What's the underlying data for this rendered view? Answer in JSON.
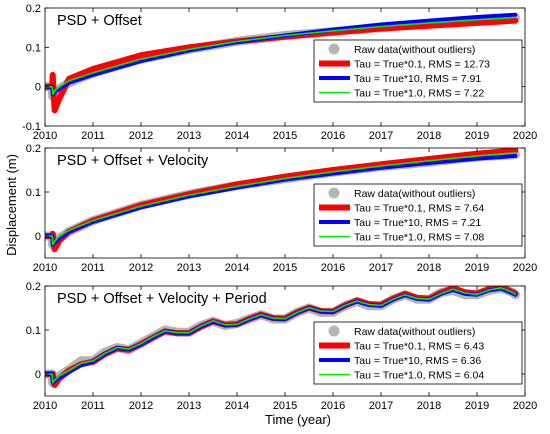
{
  "figure": {
    "ylabel": "Displacement (m)",
    "xlabel": "Time (year)"
  },
  "colors": {
    "raw": "#b5b5b5",
    "tau01": "#ff0000",
    "tau10": "#0000ff",
    "tau1": "#00ee00"
  },
  "chart_data": [
    {
      "type": "line",
      "title": "PSD + Offset",
      "xlim": [
        2010,
        2020
      ],
      "ylim": [
        -0.1,
        0.2
      ],
      "xticks": [
        "2010",
        "2011",
        "2012",
        "2013",
        "2014",
        "2015",
        "2016",
        "2017",
        "2018",
        "2019",
        "2020"
      ],
      "yticks": [
        "-0.1",
        "0",
        "0.1",
        "0.2"
      ],
      "legend_position": "right",
      "x": [
        2010.0,
        2010.15,
        2010.16,
        2010.2,
        2010.3,
        2010.5,
        2011.0,
        2012.0,
        2013.0,
        2014.0,
        2015.0,
        2016.0,
        2017.0,
        2018.0,
        2019.0,
        2019.8
      ],
      "series": [
        {
          "name": "Raw data(without outliers)",
          "style": "points",
          "values": [
            0.0,
            0.0,
            -0.025,
            -0.015,
            -0.005,
            0.01,
            0.035,
            0.07,
            0.095,
            0.115,
            0.13,
            0.14,
            0.15,
            0.16,
            0.17,
            0.175
          ]
        },
        {
          "name": "Tau = True*0.1, RMS = 12.73",
          "style": "line",
          "values": [
            0.0,
            0.0,
            0.03,
            -0.06,
            -0.03,
            0.02,
            0.045,
            0.08,
            0.1,
            0.115,
            0.127,
            0.138,
            0.148,
            0.155,
            0.162,
            0.168
          ]
        },
        {
          "name": "Tau = True*10, RMS = 7.91",
          "style": "line",
          "values": [
            0.0,
            0.0,
            -0.02,
            -0.015,
            -0.005,
            0.01,
            0.03,
            0.065,
            0.092,
            0.113,
            0.13,
            0.145,
            0.158,
            0.168,
            0.177,
            0.183
          ]
        },
        {
          "name": "Tau = True*1.0, RMS = 7.22",
          "style": "line",
          "values": [
            0.0,
            0.0,
            -0.02,
            -0.01,
            0.0,
            0.015,
            0.035,
            0.07,
            0.095,
            0.115,
            0.13,
            0.142,
            0.153,
            0.162,
            0.17,
            0.176
          ]
        }
      ]
    },
    {
      "type": "line",
      "title": "PSD + Offset + Velocity",
      "xlim": [
        2010,
        2020
      ],
      "ylim": [
        -0.05,
        0.2
      ],
      "xticks": [
        "2010",
        "2011",
        "2012",
        "2013",
        "2014",
        "2015",
        "2016",
        "2017",
        "2018",
        "2019",
        "2020"
      ],
      "yticks": [
        "0",
        "0.1",
        "0.2"
      ],
      "legend_position": "right",
      "x": [
        2010.0,
        2010.15,
        2010.16,
        2010.2,
        2010.3,
        2010.5,
        2011.0,
        2012.0,
        2013.0,
        2014.0,
        2015.0,
        2016.0,
        2017.0,
        2018.0,
        2019.0,
        2019.8
      ],
      "series": [
        {
          "name": "Raw data(without outliers)",
          "style": "points",
          "values": [
            0.0,
            0.0,
            -0.02,
            -0.015,
            -0.005,
            0.01,
            0.035,
            0.07,
            0.095,
            0.115,
            0.13,
            0.145,
            0.158,
            0.168,
            0.18,
            0.185
          ]
        },
        {
          "name": "Tau = True*0.1, RMS = 7.64",
          "style": "line",
          "values": [
            0.0,
            0.0,
            0.005,
            -0.03,
            -0.01,
            0.01,
            0.035,
            0.07,
            0.095,
            0.117,
            0.135,
            0.15,
            0.163,
            0.175,
            0.187,
            0.195
          ]
        },
        {
          "name": "Tau = True*10, RMS = 7.21",
          "style": "line",
          "values": [
            0.0,
            0.0,
            -0.02,
            -0.015,
            -0.005,
            0.01,
            0.032,
            0.065,
            0.09,
            0.11,
            0.128,
            0.142,
            0.155,
            0.166,
            0.176,
            0.182
          ]
        },
        {
          "name": "Tau = True*1.0, RMS = 7.08",
          "style": "line",
          "values": [
            0.0,
            0.0,
            -0.02,
            -0.012,
            0.0,
            0.013,
            0.035,
            0.068,
            0.093,
            0.113,
            0.131,
            0.146,
            0.159,
            0.171,
            0.182,
            0.189
          ]
        }
      ]
    },
    {
      "type": "line",
      "title": "PSD + Offset + Velocity + Period",
      "xlim": [
        2010,
        2020
      ],
      "ylim": [
        -0.05,
        0.2
      ],
      "xticks": [
        "2010",
        "2011",
        "2012",
        "2013",
        "2014",
        "2015",
        "2016",
        "2017",
        "2018",
        "2019",
        "2020"
      ],
      "yticks": [
        "0",
        "0.1",
        "0.2"
      ],
      "legend_position": "right",
      "x": [
        2010.0,
        2010.15,
        2010.16,
        2010.2,
        2010.3,
        2010.5,
        2010.75,
        2011.0,
        2011.25,
        2011.5,
        2011.75,
        2012.0,
        2012.25,
        2012.5,
        2012.75,
        2013.0,
        2013.25,
        2013.5,
        2013.75,
        2014.0,
        2014.25,
        2014.5,
        2014.75,
        2015.0,
        2015.25,
        2015.5,
        2015.75,
        2016.0,
        2016.25,
        2016.5,
        2016.75,
        2017.0,
        2017.25,
        2017.5,
        2017.75,
        2018.0,
        2018.25,
        2018.5,
        2018.75,
        2019.0,
        2019.25,
        2019.5,
        2019.75,
        2019.8
      ],
      "series": [
        {
          "name": "Raw data(without outliers)",
          "style": "points",
          "values": [
            0.0,
            0.0,
            -0.02,
            -0.015,
            -0.005,
            0.01,
            0.03,
            0.03,
            0.05,
            0.06,
            0.055,
            0.07,
            0.085,
            0.1,
            0.095,
            0.095,
            0.11,
            0.12,
            0.11,
            0.115,
            0.125,
            0.135,
            0.125,
            0.125,
            0.14,
            0.15,
            0.14,
            0.14,
            0.155,
            0.165,
            0.155,
            0.155,
            0.17,
            0.18,
            0.17,
            0.17,
            0.185,
            0.19,
            0.18,
            0.18,
            0.19,
            0.195,
            0.185,
            0.18
          ]
        },
        {
          "name": "Tau = True*0.1, RMS = 6.43",
          "style": "line",
          "values": [
            0.0,
            0.0,
            0.0,
            -0.025,
            -0.01,
            0.008,
            0.022,
            0.028,
            0.045,
            0.058,
            0.055,
            0.068,
            0.083,
            0.097,
            0.093,
            0.093,
            0.108,
            0.12,
            0.112,
            0.113,
            0.125,
            0.135,
            0.127,
            0.126,
            0.14,
            0.151,
            0.143,
            0.142,
            0.156,
            0.167,
            0.159,
            0.157,
            0.171,
            0.182,
            0.173,
            0.171,
            0.185,
            0.195,
            0.186,
            0.183,
            0.193,
            0.198,
            0.186,
            0.183
          ]
        },
        {
          "name": "Tau = True*10, RMS = 6.36",
          "style": "line",
          "values": [
            0.0,
            0.0,
            -0.02,
            -0.016,
            -0.008,
            0.004,
            0.02,
            0.028,
            0.046,
            0.059,
            0.056,
            0.067,
            0.083,
            0.097,
            0.093,
            0.093,
            0.108,
            0.119,
            0.111,
            0.112,
            0.124,
            0.134,
            0.126,
            0.125,
            0.139,
            0.15,
            0.142,
            0.141,
            0.155,
            0.165,
            0.157,
            0.155,
            0.169,
            0.179,
            0.171,
            0.169,
            0.182,
            0.191,
            0.182,
            0.18,
            0.19,
            0.194,
            0.183,
            0.18
          ]
        },
        {
          "name": "Tau = True*1.0, RMS = 6.04",
          "style": "line",
          "values": [
            0.0,
            0.0,
            -0.02,
            -0.014,
            -0.004,
            0.008,
            0.024,
            0.03,
            0.047,
            0.06,
            0.057,
            0.069,
            0.085,
            0.098,
            0.094,
            0.094,
            0.109,
            0.121,
            0.112,
            0.113,
            0.125,
            0.135,
            0.127,
            0.126,
            0.14,
            0.151,
            0.143,
            0.142,
            0.156,
            0.166,
            0.158,
            0.156,
            0.17,
            0.18,
            0.172,
            0.17,
            0.183,
            0.193,
            0.184,
            0.181,
            0.191,
            0.196,
            0.185,
            0.181
          ]
        }
      ]
    }
  ]
}
